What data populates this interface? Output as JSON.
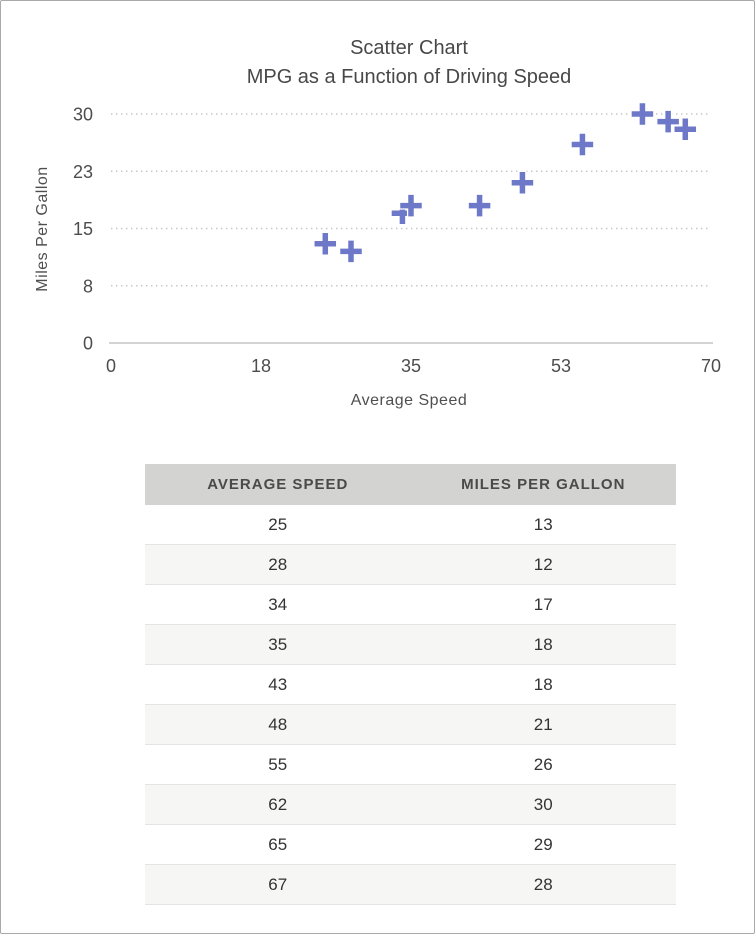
{
  "colors": {
    "marker": "#6e78c8",
    "marker_outline": "#ffffff",
    "grid": "#c6c6c6",
    "axis_line": "#c5c5c5",
    "title_text": "#484848",
    "tick_text": "#4d4d4d",
    "axis_title_text": "#4f4f4f",
    "table_header_bg": "#d3d3d1",
    "table_header_text": "#4a4a4a",
    "table_row_bg": "#ffffff",
    "table_row_alt_bg": "#f6f6f4",
    "table_text": "#333333"
  },
  "chart_data": {
    "type": "scatter",
    "title": "Scatter Chart",
    "subtitle": "MPG as a Function of Driving Speed",
    "xlabel": "Average Speed",
    "ylabel": "Miles Per Gallon",
    "xlim": [
      0,
      70
    ],
    "ylim": [
      0,
      30
    ],
    "x_tick_values": [
      0,
      17.5,
      35,
      52.5,
      70
    ],
    "x_tick_labels": [
      "0",
      "18",
      "35",
      "53",
      "70"
    ],
    "y_tick_values": [
      0,
      7.5,
      15,
      22.5,
      30
    ],
    "y_tick_labels": [
      "0",
      "8",
      "15",
      "23",
      "30"
    ],
    "grid": "horizontal-dotted",
    "legend": "none",
    "series": [
      {
        "name": "Miles Per Gallon",
        "marker": "plus",
        "points": [
          {
            "x": 25,
            "y": 13
          },
          {
            "x": 28,
            "y": 12
          },
          {
            "x": 34,
            "y": 17
          },
          {
            "x": 35,
            "y": 18
          },
          {
            "x": 43,
            "y": 18
          },
          {
            "x": 48,
            "y": 21
          },
          {
            "x": 55,
            "y": 26
          },
          {
            "x": 62,
            "y": 30
          },
          {
            "x": 65,
            "y": 29
          },
          {
            "x": 67,
            "y": 28
          }
        ]
      }
    ]
  },
  "table": {
    "headers": [
      "AVERAGE SPEED",
      "MILES PER GALLON"
    ],
    "rows": [
      [
        "25",
        "13"
      ],
      [
        "28",
        "12"
      ],
      [
        "34",
        "17"
      ],
      [
        "35",
        "18"
      ],
      [
        "43",
        "18"
      ],
      [
        "48",
        "21"
      ],
      [
        "55",
        "26"
      ],
      [
        "62",
        "30"
      ],
      [
        "65",
        "29"
      ],
      [
        "67",
        "28"
      ]
    ]
  }
}
